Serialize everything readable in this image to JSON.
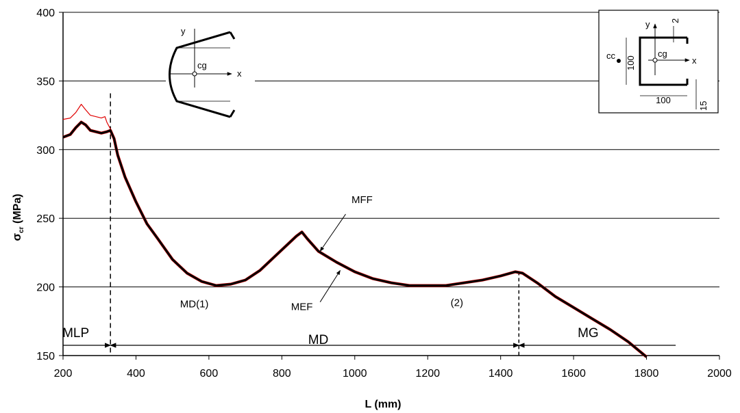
{
  "chart_data": {
    "type": "line",
    "xlabel": "L (mm)",
    "ylabel": "σcr (MPa)",
    "ylabel_main": "σ",
    "ylabel_sub": "cr",
    "ylabel_unit": " (MPa)",
    "xlim": [
      200,
      2000
    ],
    "ylim": [
      150,
      400
    ],
    "x_ticks": [
      200,
      400,
      600,
      800,
      1000,
      1200,
      1400,
      1600,
      1800,
      2000
    ],
    "y_ticks": [
      150,
      200,
      250,
      300,
      350,
      400
    ],
    "grid": "horizontal",
    "series": [
      {
        "color": "#000000",
        "points": [
          [
            200,
            309
          ],
          [
            220,
            311
          ],
          [
            235,
            316
          ],
          [
            250,
            320
          ],
          [
            262,
            318
          ],
          [
            275,
            314
          ],
          [
            290,
            313
          ],
          [
            305,
            312
          ],
          [
            320,
            313
          ],
          [
            330,
            314
          ],
          [
            340,
            308
          ],
          [
            350,
            296
          ],
          [
            370,
            280
          ],
          [
            400,
            262
          ],
          [
            430,
            246
          ],
          [
            460,
            235
          ],
          [
            500,
            220
          ],
          [
            540,
            210
          ],
          [
            580,
            204
          ],
          [
            620,
            201
          ],
          [
            660,
            202
          ],
          [
            700,
            205
          ],
          [
            740,
            212
          ],
          [
            780,
            222
          ],
          [
            820,
            232
          ],
          [
            840,
            237
          ],
          [
            855,
            240
          ],
          [
            870,
            235
          ],
          [
            900,
            226
          ],
          [
            950,
            218
          ],
          [
            1000,
            211
          ],
          [
            1050,
            206
          ],
          [
            1100,
            203
          ],
          [
            1150,
            201
          ],
          [
            1200,
            201
          ],
          [
            1250,
            201
          ],
          [
            1300,
            203
          ],
          [
            1350,
            205
          ],
          [
            1400,
            208
          ],
          [
            1440,
            211
          ],
          [
            1460,
            210
          ],
          [
            1500,
            203
          ],
          [
            1550,
            193
          ],
          [
            1600,
            185
          ],
          [
            1650,
            177
          ],
          [
            1700,
            169
          ],
          [
            1750,
            160
          ],
          [
            1800,
            149
          ]
        ]
      },
      {
        "color": "#e00000",
        "points": [
          [
            200,
            322
          ],
          [
            220,
            323
          ],
          [
            235,
            327
          ],
          [
            250,
            333
          ],
          [
            262,
            329
          ],
          [
            275,
            325
          ],
          [
            290,
            324
          ],
          [
            305,
            323
          ],
          [
            315,
            324
          ],
          [
            320,
            320
          ],
          [
            330,
            315
          ]
        ]
      }
    ],
    "annotations": [
      {
        "text": "MFF",
        "x": 1020,
        "y": 261
      },
      {
        "text": "MEF",
        "x": 855,
        "y": 183
      },
      {
        "text": "MD(1)",
        "x": 560,
        "y": 185
      },
      {
        "text": "(2)",
        "x": 1280,
        "y": 186
      }
    ],
    "regions": [
      {
        "label": "MLP",
        "from": 200,
        "to": 330
      },
      {
        "label": "MD",
        "from": 330,
        "to": 1450
      },
      {
        "label": "MG",
        "from": 1450,
        "to": 1880
      }
    ],
    "vlines": [
      330,
      1450
    ],
    "inset": {
      "labels": [
        "y",
        "2",
        "cc",
        "cg",
        "100",
        "x",
        "100",
        "15"
      ]
    },
    "left_sketch": {
      "labels": [
        "y",
        "cg",
        "x"
      ]
    }
  }
}
